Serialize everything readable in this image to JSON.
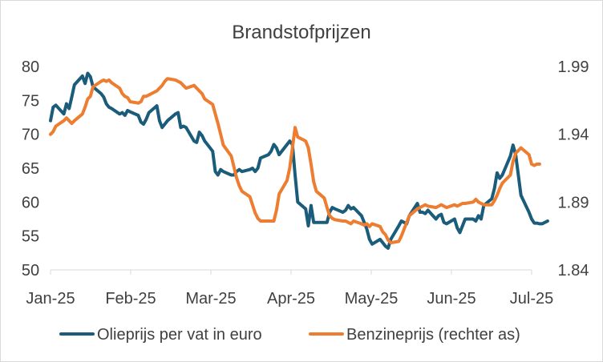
{
  "chart_data": {
    "type": "line",
    "title": "Brandstofprijzen",
    "xlabel": "",
    "ylabel": "",
    "x_ticks": [
      "Jan-25",
      "Feb-25",
      "Mar-25",
      "Apr-25",
      "May-25",
      "Jun-25",
      "Jul-25"
    ],
    "y_left": {
      "ylim": [
        50,
        80
      ],
      "ticks": [
        "50",
        "55",
        "60",
        "65",
        "70",
        "75",
        "80"
      ]
    },
    "y_right": {
      "ylim": [
        1.84,
        1.99
      ],
      "ticks": [
        "1.84",
        "1.89",
        "1.94",
        "1.99"
      ]
    },
    "grid": false,
    "legend_position": "bottom",
    "series": [
      {
        "name": "Olieprijs per vat in euro",
        "axis": "left",
        "color": "#1a5c7a",
        "points": [
          [
            "2025-01-01",
            72
          ],
          [
            "2025-01-02",
            74
          ],
          [
            "2025-01-03",
            74.3
          ],
          [
            "2025-01-06",
            73
          ],
          [
            "2025-01-07",
            74.5
          ],
          [
            "2025-01-08",
            73.8
          ],
          [
            "2025-01-09",
            75.5
          ],
          [
            "2025-01-10",
            77.3
          ],
          [
            "2025-01-13",
            78.6
          ],
          [
            "2025-01-14",
            77.5
          ],
          [
            "2025-01-15",
            79
          ],
          [
            "2025-01-16",
            78.5
          ],
          [
            "2025-01-17",
            77
          ],
          [
            "2025-01-20",
            76
          ],
          [
            "2025-01-21",
            75.5
          ],
          [
            "2025-01-22",
            74.5
          ],
          [
            "2025-01-23",
            74
          ],
          [
            "2025-01-24",
            73.8
          ],
          [
            "2025-01-27",
            73
          ],
          [
            "2025-01-28",
            73.2
          ],
          [
            "2025-01-29",
            72.8
          ],
          [
            "2025-01-30",
            73.5
          ],
          [
            "2025-01-31",
            73.3
          ],
          [
            "2025-02-03",
            72.8
          ],
          [
            "2025-02-04",
            71.8
          ],
          [
            "2025-02-05",
            71.5
          ],
          [
            "2025-02-06",
            72.2
          ],
          [
            "2025-02-07",
            73.2
          ],
          [
            "2025-02-10",
            74.2
          ],
          [
            "2025-02-11",
            72
          ],
          [
            "2025-02-12",
            71
          ],
          [
            "2025-02-13",
            71.5
          ],
          [
            "2025-02-14",
            72
          ],
          [
            "2025-02-17",
            73
          ],
          [
            "2025-02-18",
            73.2
          ],
          [
            "2025-02-19",
            71
          ],
          [
            "2025-02-20",
            71.2
          ],
          [
            "2025-02-21",
            71
          ],
          [
            "2025-02-24",
            69
          ],
          [
            "2025-02-25",
            68.8
          ],
          [
            "2025-02-26",
            70.3
          ],
          [
            "2025-02-27",
            69.8
          ],
          [
            "2025-02-28",
            69
          ],
          [
            "2025-03-03",
            67.5
          ],
          [
            "2025-03-04",
            64.5
          ],
          [
            "2025-03-05",
            64
          ],
          [
            "2025-03-06",
            64.8
          ],
          [
            "2025-03-07",
            64.5
          ],
          [
            "2025-03-10",
            64
          ],
          [
            "2025-03-11",
            64
          ],
          [
            "2025-03-12",
            64.5
          ],
          [
            "2025-03-13",
            64.8
          ],
          [
            "2025-03-14",
            64.5
          ],
          [
            "2025-03-17",
            64.8
          ],
          [
            "2025-03-18",
            65
          ],
          [
            "2025-03-19",
            64.5
          ],
          [
            "2025-03-20",
            65
          ],
          [
            "2025-03-21",
            66.5
          ],
          [
            "2025-03-24",
            67
          ],
          [
            "2025-03-25",
            67.5
          ],
          [
            "2025-03-26",
            68.5
          ],
          [
            "2025-03-27",
            68
          ],
          [
            "2025-03-28",
            67
          ],
          [
            "2025-03-31",
            68.5
          ],
          [
            "2025-04-01",
            69
          ],
          [
            "2025-04-02",
            68.5
          ],
          [
            "2025-04-03",
            64
          ],
          [
            "2025-04-04",
            60
          ],
          [
            "2025-04-07",
            59
          ],
          [
            "2025-04-08",
            56.5
          ],
          [
            "2025-04-09",
            59.5
          ],
          [
            "2025-04-10",
            57
          ],
          [
            "2025-04-11",
            57
          ],
          [
            "2025-04-14",
            57
          ],
          [
            "2025-04-15",
            57
          ],
          [
            "2025-04-16",
            58.5
          ],
          [
            "2025-04-17",
            59.2
          ],
          [
            "2025-04-18",
            59
          ],
          [
            "2025-04-21",
            58.5
          ],
          [
            "2025-04-22",
            58.8
          ],
          [
            "2025-04-23",
            59.5
          ],
          [
            "2025-04-24",
            59
          ],
          [
            "2025-04-25",
            59.2
          ],
          [
            "2025-04-28",
            58
          ],
          [
            "2025-04-29",
            57
          ],
          [
            "2025-04-30",
            56
          ],
          [
            "2025-05-01",
            54.5
          ],
          [
            "2025-05-02",
            53.8
          ],
          [
            "2025-05-05",
            54.5
          ],
          [
            "2025-05-06",
            54
          ],
          [
            "2025-05-07",
            53.5
          ],
          [
            "2025-05-08",
            53.2
          ],
          [
            "2025-05-09",
            54.5
          ],
          [
            "2025-05-12",
            56.5
          ],
          [
            "2025-05-13",
            57.2
          ],
          [
            "2025-05-14",
            57
          ],
          [
            "2025-05-15",
            56.8
          ],
          [
            "2025-05-16",
            58
          ],
          [
            "2025-05-19",
            59.8
          ],
          [
            "2025-05-20",
            58.5
          ],
          [
            "2025-05-21",
            58.5
          ],
          [
            "2025-05-22",
            58.3
          ],
          [
            "2025-05-23",
            58.8
          ],
          [
            "2025-05-26",
            57.5
          ],
          [
            "2025-05-27",
            58
          ],
          [
            "2025-05-28",
            58.2
          ],
          [
            "2025-05-29",
            57
          ],
          [
            "2025-05-30",
            56.8
          ],
          [
            "2025-06-02",
            57.5
          ],
          [
            "2025-06-03",
            56.2
          ],
          [
            "2025-06-04",
            55.5
          ],
          [
            "2025-06-05",
            56.5
          ],
          [
            "2025-06-06",
            57.5
          ],
          [
            "2025-06-09",
            57.5
          ],
          [
            "2025-06-10",
            57.2
          ],
          [
            "2025-06-11",
            58
          ],
          [
            "2025-06-12",
            57.5
          ],
          [
            "2025-06-13",
            59.5
          ],
          [
            "2025-06-16",
            60.5
          ],
          [
            "2025-06-17",
            62
          ],
          [
            "2025-06-18",
            64.3
          ],
          [
            "2025-06-19",
            63.5
          ],
          [
            "2025-06-20",
            64
          ],
          [
            "2025-06-23",
            66.8
          ],
          [
            "2025-06-24",
            68.4
          ],
          [
            "2025-06-25",
            67
          ],
          [
            "2025-06-26",
            64
          ],
          [
            "2025-06-27",
            61
          ],
          [
            "2025-06-30",
            58.5
          ],
          [
            "2025-07-01",
            57.5
          ],
          [
            "2025-07-02",
            56.9
          ],
          [
            "2025-07-03",
            56.9
          ],
          [
            "2025-07-04",
            56.8
          ],
          [
            "2025-07-05",
            56.8
          ],
          [
            "2025-07-07",
            57.2
          ]
        ]
      },
      {
        "name": "Benzineprijs (rechter as)",
        "axis": "right",
        "color": "#ed7d31",
        "points": [
          [
            "2025-01-01",
            1.94
          ],
          [
            "2025-01-02",
            1.942
          ],
          [
            "2025-01-03",
            1.946
          ],
          [
            "2025-01-06",
            1.95
          ],
          [
            "2025-01-07",
            1.952
          ],
          [
            "2025-01-08",
            1.95
          ],
          [
            "2025-01-09",
            1.948
          ],
          [
            "2025-01-10",
            1.95
          ],
          [
            "2025-01-13",
            1.955
          ],
          [
            "2025-01-14",
            1.96
          ],
          [
            "2025-01-15",
            1.966
          ],
          [
            "2025-01-16",
            1.968
          ],
          [
            "2025-01-17",
            1.975
          ],
          [
            "2025-01-20",
            1.979
          ],
          [
            "2025-01-21",
            1.98
          ],
          [
            "2025-01-22",
            1.979
          ],
          [
            "2025-01-23",
            1.98
          ],
          [
            "2025-01-24",
            1.978
          ],
          [
            "2025-01-27",
            1.974
          ],
          [
            "2025-01-28",
            1.97
          ],
          [
            "2025-01-29",
            1.968
          ],
          [
            "2025-01-30",
            1.967
          ],
          [
            "2025-01-31",
            1.964
          ],
          [
            "2025-02-03",
            1.963
          ],
          [
            "2025-02-04",
            1.964
          ],
          [
            "2025-02-05",
            1.968
          ],
          [
            "2025-02-06",
            1.968
          ],
          [
            "2025-02-07",
            1.969
          ],
          [
            "2025-02-10",
            1.972
          ],
          [
            "2025-02-11",
            1.974
          ],
          [
            "2025-02-12",
            1.976
          ],
          [
            "2025-02-13",
            1.979
          ],
          [
            "2025-02-14",
            1.981
          ],
          [
            "2025-02-17",
            1.98
          ],
          [
            "2025-02-18",
            1.979
          ],
          [
            "2025-02-19",
            1.978
          ],
          [
            "2025-02-20",
            1.976
          ],
          [
            "2025-02-21",
            1.974
          ],
          [
            "2025-02-24",
            1.976
          ],
          [
            "2025-02-25",
            1.974
          ],
          [
            "2025-02-26",
            1.972
          ],
          [
            "2025-02-27",
            1.97
          ],
          [
            "2025-02-28",
            1.966
          ],
          [
            "2025-03-03",
            1.962
          ],
          [
            "2025-03-04",
            1.955
          ],
          [
            "2025-03-05",
            1.948
          ],
          [
            "2025-03-06",
            1.94
          ],
          [
            "2025-03-07",
            1.932
          ],
          [
            "2025-03-10",
            1.924
          ],
          [
            "2025-03-11",
            1.916
          ],
          [
            "2025-03-12",
            1.908
          ],
          [
            "2025-03-13",
            1.902
          ],
          [
            "2025-03-14",
            1.898
          ],
          [
            "2025-03-17",
            1.894
          ],
          [
            "2025-03-18",
            1.888
          ],
          [
            "2025-03-19",
            1.882
          ],
          [
            "2025-03-20",
            1.878
          ],
          [
            "2025-03-21",
            1.876
          ],
          [
            "2025-03-24",
            1.876
          ],
          [
            "2025-03-25",
            1.876
          ],
          [
            "2025-03-26",
            1.876
          ],
          [
            "2025-03-27",
            1.884
          ],
          [
            "2025-03-28",
            1.896
          ],
          [
            "2025-03-31",
            1.906
          ],
          [
            "2025-04-01",
            1.915
          ],
          [
            "2025-04-02",
            1.93
          ],
          [
            "2025-04-03",
            1.945
          ],
          [
            "2025-04-04",
            1.938
          ],
          [
            "2025-04-07",
            1.935
          ],
          [
            "2025-04-08",
            1.93
          ],
          [
            "2025-04-09",
            1.918
          ],
          [
            "2025-04-10",
            1.905
          ],
          [
            "2025-04-11",
            1.898
          ],
          [
            "2025-04-14",
            1.893
          ],
          [
            "2025-04-15",
            1.886
          ],
          [
            "2025-04-16",
            1.88
          ],
          [
            "2025-04-17",
            1.878
          ],
          [
            "2025-04-18",
            1.877
          ],
          [
            "2025-04-21",
            1.876
          ],
          [
            "2025-04-22",
            1.876
          ],
          [
            "2025-04-23",
            1.875
          ],
          [
            "2025-04-24",
            1.874
          ],
          [
            "2025-04-25",
            1.876
          ],
          [
            "2025-04-28",
            1.874
          ],
          [
            "2025-04-29",
            1.873
          ],
          [
            "2025-04-30",
            1.874
          ],
          [
            "2025-05-01",
            1.872
          ],
          [
            "2025-05-02",
            1.874
          ],
          [
            "2025-05-05",
            1.872
          ],
          [
            "2025-05-06",
            1.868
          ],
          [
            "2025-05-07",
            1.866
          ],
          [
            "2025-05-08",
            1.862
          ],
          [
            "2025-05-09",
            1.86
          ],
          [
            "2025-05-12",
            1.861
          ],
          [
            "2025-05-13",
            1.865
          ],
          [
            "2025-05-14",
            1.87
          ],
          [
            "2025-05-15",
            1.875
          ],
          [
            "2025-05-16",
            1.88
          ],
          [
            "2025-05-19",
            1.885
          ],
          [
            "2025-05-20",
            1.886
          ],
          [
            "2025-05-21",
            1.887
          ],
          [
            "2025-05-22",
            1.888
          ],
          [
            "2025-05-23",
            1.887
          ],
          [
            "2025-05-26",
            1.886
          ],
          [
            "2025-05-27",
            1.887
          ],
          [
            "2025-05-28",
            1.888
          ],
          [
            "2025-05-29",
            1.887
          ],
          [
            "2025-05-30",
            1.886
          ],
          [
            "2025-06-02",
            1.888
          ],
          [
            "2025-06-03",
            1.887
          ],
          [
            "2025-06-04",
            1.888
          ],
          [
            "2025-06-05",
            1.889
          ],
          [
            "2025-06-06",
            1.889
          ],
          [
            "2025-06-09",
            1.89
          ],
          [
            "2025-06-10",
            1.892
          ],
          [
            "2025-06-11",
            1.89
          ],
          [
            "2025-06-12",
            1.889
          ],
          [
            "2025-06-13",
            1.888
          ],
          [
            "2025-06-16",
            1.888
          ],
          [
            "2025-06-17",
            1.891
          ],
          [
            "2025-06-18",
            1.895
          ],
          [
            "2025-06-19",
            1.9
          ],
          [
            "2025-06-20",
            1.904
          ],
          [
            "2025-06-23",
            1.91
          ],
          [
            "2025-06-24",
            1.92
          ],
          [
            "2025-06-25",
            1.926
          ],
          [
            "2025-06-26",
            1.928
          ],
          [
            "2025-06-27",
            1.93
          ],
          [
            "2025-06-30",
            1.925
          ],
          [
            "2025-07-01",
            1.918
          ],
          [
            "2025-07-02",
            1.917
          ],
          [
            "2025-07-03",
            1.918
          ],
          [
            "2025-07-04",
            1.918
          ]
        ]
      }
    ]
  }
}
